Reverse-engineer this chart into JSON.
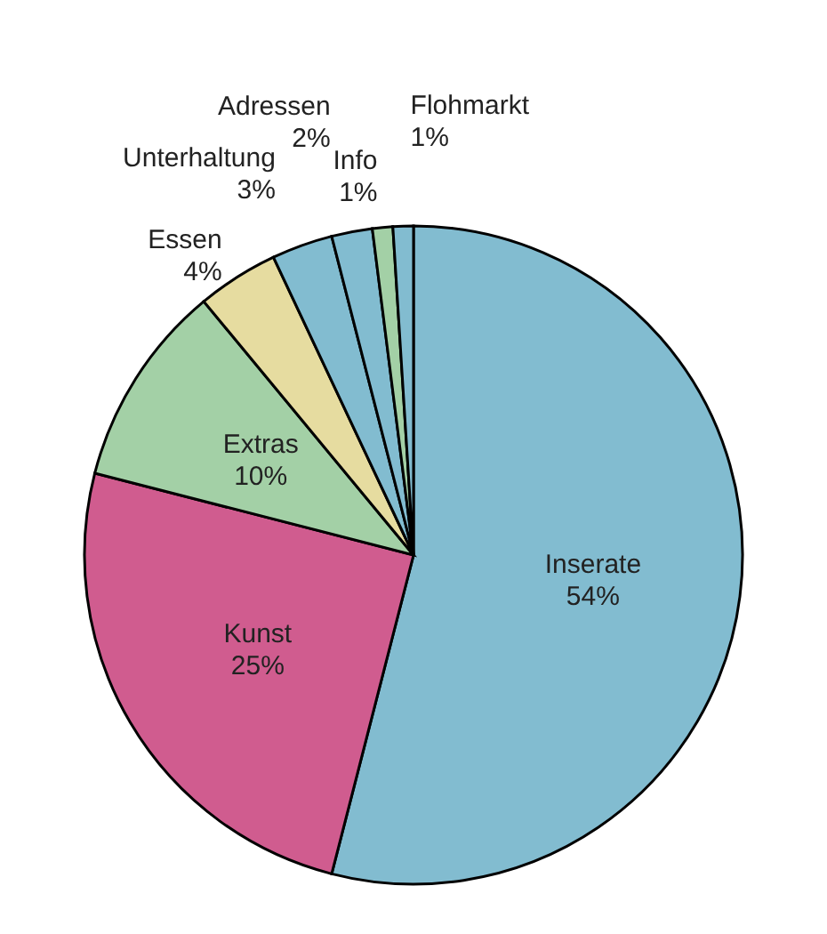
{
  "chart_data": {
    "type": "pie",
    "categories": [
      "Inserate",
      "Kunst",
      "Extras",
      "Essen",
      "Unterhaltung",
      "Adressen",
      "Info",
      "Flohmarkt"
    ],
    "values": [
      54,
      25,
      10,
      4,
      3,
      2,
      1,
      1
    ],
    "colors": [
      "#82bcd0",
      "#d05c8f",
      "#a3d0a6",
      "#e6dca0",
      "#82bcd0",
      "#82bcd0",
      "#a3d0a6",
      "#82bcd0"
    ],
    "value_labels": [
      "54%",
      "25%",
      "10%",
      "4%",
      "3%",
      "2%",
      "1%",
      "1%"
    ],
    "legend": false
  }
}
